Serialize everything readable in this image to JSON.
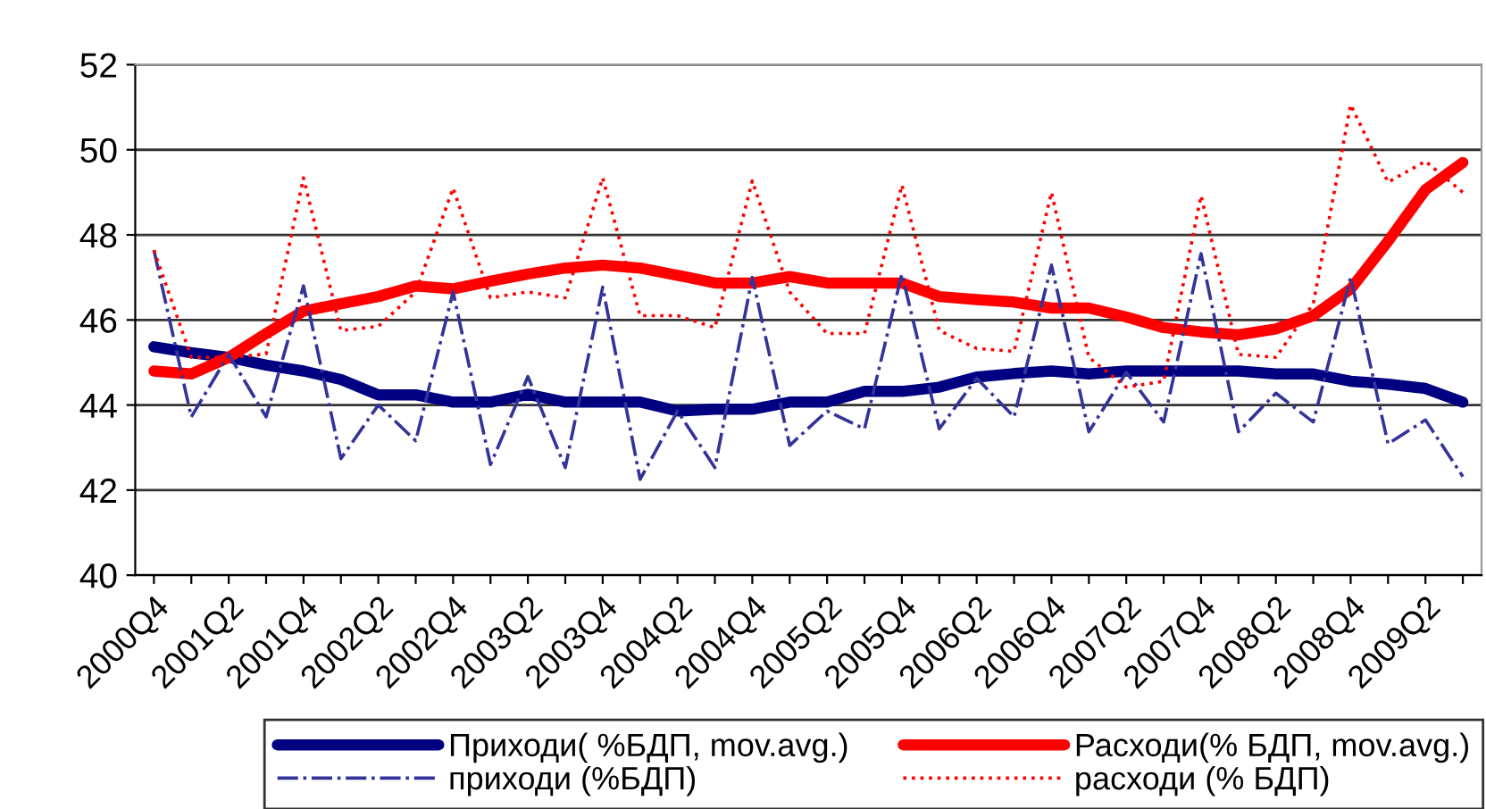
{
  "chart_data": {
    "type": "line",
    "categories": [
      "2000Q4",
      null,
      "2001Q2",
      null,
      "2001Q4",
      null,
      "2002Q2",
      null,
      "2002Q4",
      null,
      "2003Q2",
      null,
      "2003Q4",
      null,
      "2004Q2",
      null,
      "2004Q4",
      null,
      "2005Q2",
      null,
      "2005Q4",
      null,
      "2006Q2",
      null,
      "2006Q4",
      null,
      "2007Q2",
      null,
      "2007Q4",
      null,
      "2008Q2",
      null,
      "2008Q4",
      null,
      "2009Q2",
      null
    ],
    "series": [
      {
        "name": "Приходи( %БДП, mov.avg.)",
        "color": "#000080",
        "line_style": "solid",
        "values": [
          45.37,
          45.23,
          45.12,
          44.94,
          44.8,
          44.6,
          44.24,
          44.24,
          44.07,
          44.07,
          44.25,
          44.07,
          44.07,
          44.07,
          43.86,
          43.9,
          43.9,
          44.07,
          44.07,
          44.32,
          44.32,
          44.42,
          44.66,
          44.74,
          44.8,
          44.73,
          44.8,
          44.8,
          44.8,
          44.8,
          44.73,
          44.73,
          44.56,
          44.49,
          44.39,
          44.07
        ]
      },
      {
        "name": "Расходи(% БДП, mov.avg.)",
        "color": "#ff0000",
        "line_style": "solid",
        "values": [
          44.8,
          44.73,
          45.12,
          45.68,
          46.21,
          46.38,
          46.55,
          46.8,
          46.73,
          46.91,
          47.08,
          47.22,
          47.29,
          47.22,
          47.05,
          46.87,
          46.87,
          47.02,
          46.87,
          46.87,
          46.87,
          46.55,
          46.48,
          46.42,
          46.28,
          46.28,
          46.07,
          45.82,
          45.72,
          45.65,
          45.79,
          46.1,
          46.73,
          47.85,
          49.06,
          49.7
        ]
      },
      {
        "name": "приходи (%БДП)",
        "color": "#333399",
        "line_style": "dashdot",
        "values": [
          47.64,
          43.72,
          45.19,
          43.72,
          46.8,
          42.74,
          44.0,
          43.16,
          46.66,
          42.6,
          44.67,
          42.53,
          46.77,
          42.25,
          43.86,
          42.53,
          47.0,
          43.05,
          43.86,
          43.44,
          47.08,
          43.44,
          44.63,
          43.72,
          47.29,
          43.37,
          44.77,
          43.6,
          47.56,
          43.37,
          44.28,
          43.6,
          47.0,
          43.09,
          43.65,
          42.32
        ]
      },
      {
        "name": "расходи (% БДП)",
        "color": "#ff0000",
        "line_style": "dotted",
        "values": [
          47.64,
          45.12,
          45.12,
          45.2,
          49.34,
          45.75,
          45.85,
          46.66,
          49.1,
          46.52,
          46.66,
          46.52,
          49.34,
          46.1,
          46.1,
          45.82,
          49.27,
          46.66,
          45.68,
          45.68,
          49.17,
          45.75,
          45.33,
          45.26,
          49.0,
          45.12,
          44.42,
          44.56,
          48.92,
          45.19,
          45.12,
          46.38,
          51.06,
          49.24,
          49.73,
          49.0
        ]
      }
    ],
    "ylim": [
      40,
      52
    ],
    "yticks": [
      40,
      42,
      44,
      46,
      48,
      50,
      52
    ],
    "grid": "y",
    "legend": "bottom"
  }
}
